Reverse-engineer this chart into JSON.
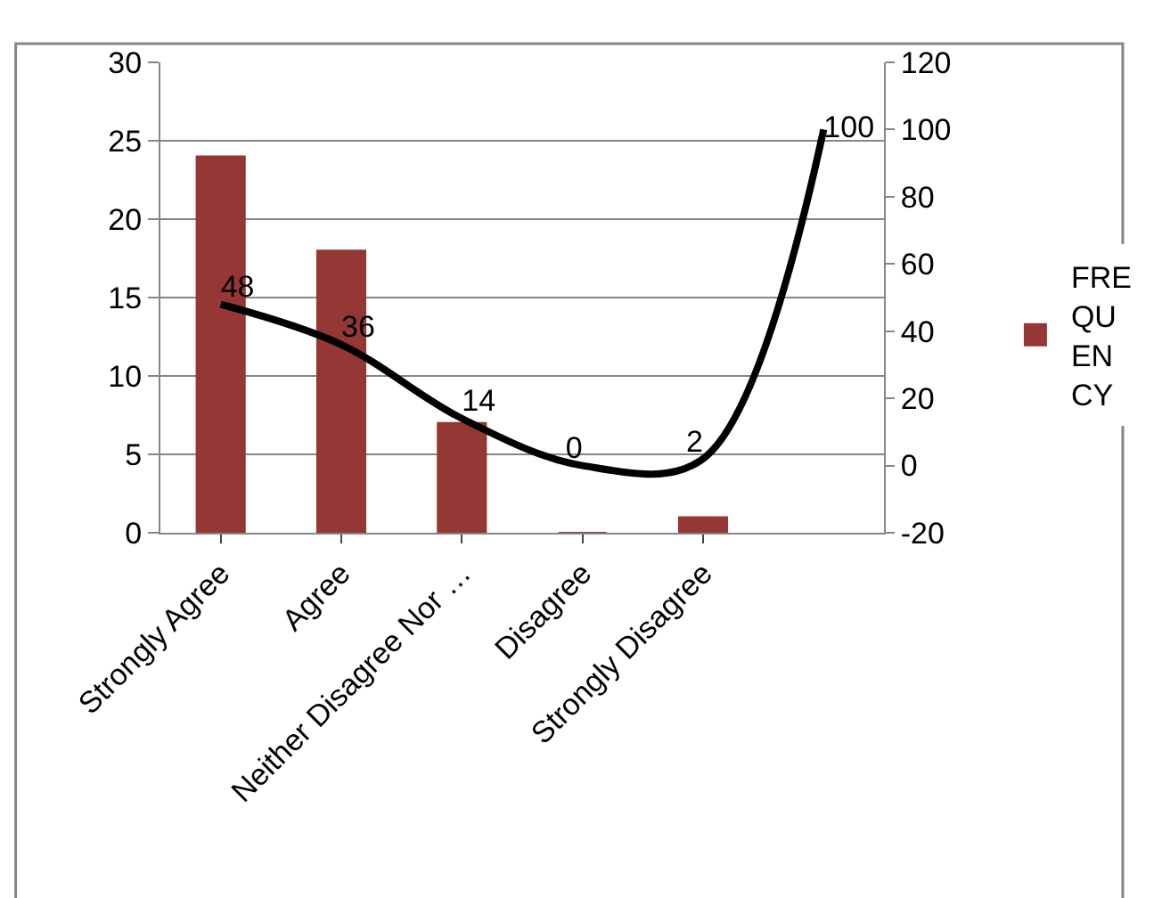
{
  "chart_data": {
    "type": "bar",
    "categories": [
      "Strongly Agree",
      "Agree",
      "Neither Disagree Nor …",
      "Disagree",
      "Strongly Disagree",
      null
    ],
    "series": [
      {
        "name": "FREQUENCY",
        "color": "#953735",
        "values": [
          24,
          18,
          7,
          0,
          1,
          null
        ]
      },
      {
        "type": "line",
        "axis": "y2",
        "color": "#000000",
        "values": [
          48,
          36,
          14,
          0,
          2,
          100
        ],
        "data_labels": true,
        "marker": "none",
        "line_style": "solid"
      }
    ],
    "ylim": [
      0,
      30
    ],
    "yticks": [
      0,
      5,
      10,
      15,
      20,
      25,
      30
    ],
    "y2lim": [
      -20,
      120
    ],
    "y2ticks": [
      -20,
      0,
      20,
      40,
      60,
      80,
      100,
      120
    ],
    "grid": "y",
    "legend": "right"
  }
}
